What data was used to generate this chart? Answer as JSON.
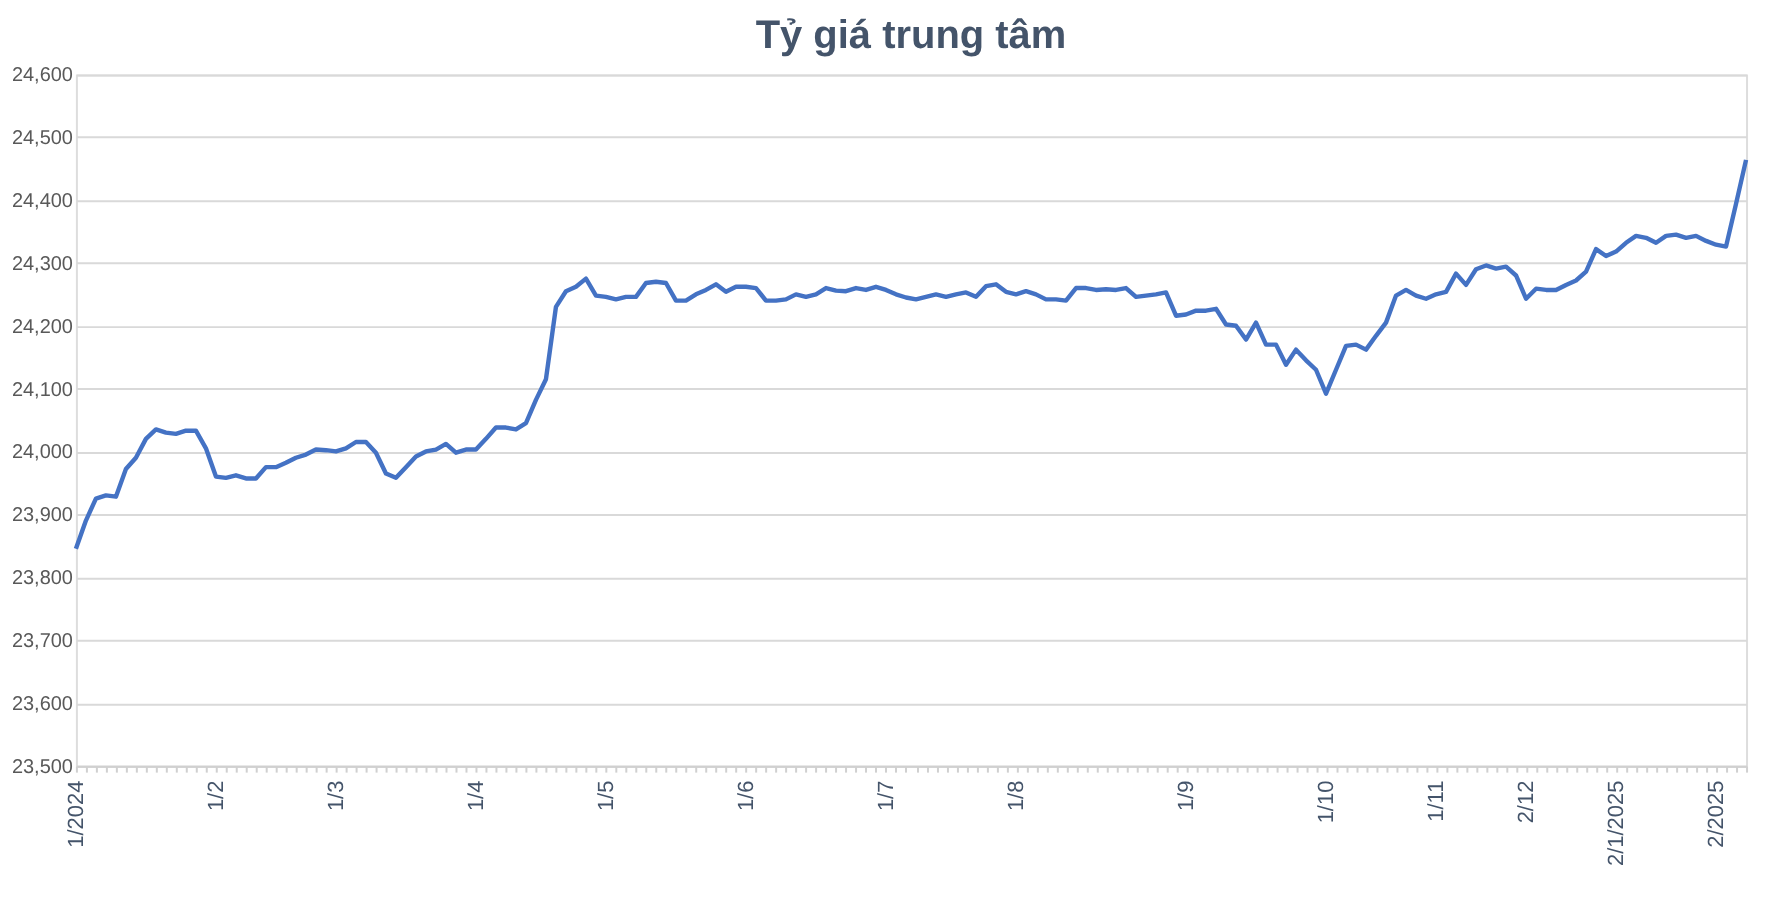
{
  "chart_data": {
    "type": "line",
    "title": "Tỷ giá trung tâm",
    "categories": [
      "1/2024",
      null,
      null,
      null,
      null,
      null,
      null,
      null,
      null,
      null,
      null,
      null,
      null,
      null,
      "1/2",
      null,
      null,
      null,
      null,
      null,
      null,
      null,
      null,
      null,
      null,
      null,
      "1/3",
      null,
      null,
      null,
      null,
      null,
      null,
      null,
      null,
      null,
      null,
      null,
      null,
      null,
      "1/4",
      null,
      null,
      null,
      null,
      null,
      null,
      null,
      null,
      null,
      null,
      null,
      null,
      "1/5",
      null,
      null,
      null,
      null,
      null,
      null,
      null,
      null,
      null,
      null,
      null,
      null,
      null,
      "1/6",
      null,
      null,
      null,
      null,
      null,
      null,
      null,
      null,
      null,
      null,
      null,
      null,
      null,
      "1/7",
      null,
      null,
      null,
      null,
      null,
      null,
      null,
      null,
      null,
      null,
      null,
      null,
      "1/8",
      null,
      null,
      null,
      null,
      null,
      null,
      null,
      null,
      null,
      null,
      null,
      null,
      null,
      null,
      null,
      null,
      "1/9",
      null,
      null,
      null,
      null,
      null,
      null,
      null,
      null,
      null,
      null,
      null,
      null,
      null,
      "1/10",
      null,
      null,
      null,
      null,
      null,
      null,
      null,
      null,
      null,
      null,
      "1/11",
      null,
      null,
      null,
      null,
      null,
      null,
      null,
      null,
      "2/12",
      null,
      null,
      null,
      null,
      null,
      null,
      null,
      null,
      "2/1/2025",
      null,
      null,
      null,
      null,
      null,
      null,
      null,
      null,
      null,
      "2/2025",
      null,
      null,
      null
    ],
    "series": [
      {
        "color": "#4472c4",
        "values": [
          23845,
          23890,
          23925,
          23930,
          23928,
          23972,
          23990,
          24020,
          24035,
          24030,
          24028,
          24033,
          24033,
          24005,
          23960,
          23958,
          23962,
          23957,
          23957,
          23975,
          23975,
          23982,
          23990,
          23995,
          24003,
          24002,
          24000,
          24005,
          24015,
          24015,
          23998,
          23965,
          23958,
          23975,
          23992,
          24000,
          24003,
          24012,
          23998,
          24003,
          24003,
          24020,
          24038,
          24038,
          24035,
          24045,
          24082,
          24115,
          24230,
          24255,
          24262,
          24275,
          24248,
          24246,
          24242,
          24246,
          24246,
          24268,
          24270,
          24268,
          24240,
          24240,
          24250,
          24257,
          24266,
          24254,
          24262,
          24262,
          24260,
          24240,
          24240,
          24242,
          24250,
          24246,
          24250,
          24260,
          24256,
          24255,
          24260,
          24257,
          24262,
          24257,
          24250,
          24245,
          24242,
          24246,
          24250,
          24246,
          24250,
          24253,
          24246,
          24263,
          24266,
          24254,
          24250,
          24255,
          24250,
          24242,
          24242,
          24240,
          24260,
          24260,
          24257,
          24258,
          24257,
          24260,
          24246,
          24248,
          24250,
          24253,
          24216,
          24218,
          24224,
          24224,
          24227,
          24202,
          24200,
          24178,
          24205,
          24170,
          24170,
          24138,
          24162,
          24145,
          24130,
          24092,
          24130,
          24168,
          24170,
          24162,
          24184,
          24205,
          24248,
          24257,
          24248,
          24243,
          24250,
          24254,
          24283,
          24265,
          24290,
          24296,
          24291,
          24294,
          24280,
          24243,
          24259,
          24257,
          24257,
          24265,
          24272,
          24286,
          24322,
          24311,
          24318,
          24332,
          24343,
          24340,
          24332,
          24343,
          24345,
          24340,
          24343,
          24335,
          24329,
          24326,
          24394,
          24464
        ]
      }
    ],
    "ylim": [
      23500,
      24600
    ],
    "yticks": [
      {
        "value": 23500,
        "label": "23,500"
      },
      {
        "value": 23600,
        "label": "23,600"
      },
      {
        "value": 23700,
        "label": "23,700"
      },
      {
        "value": 23800,
        "label": "23,800"
      },
      {
        "value": 23900,
        "label": "23,900"
      },
      {
        "value": 24000,
        "label": "24,000"
      },
      {
        "value": 24100,
        "label": "24,100"
      },
      {
        "value": 24200,
        "label": "24,200"
      },
      {
        "value": 24300,
        "label": "24,300"
      },
      {
        "value": 24400,
        "label": "24,400"
      },
      {
        "value": 24500,
        "label": "24,500"
      },
      {
        "value": 24600,
        "label": "24,600"
      }
    ],
    "grid": "y",
    "marker": "none",
    "line_style": "solid"
  }
}
